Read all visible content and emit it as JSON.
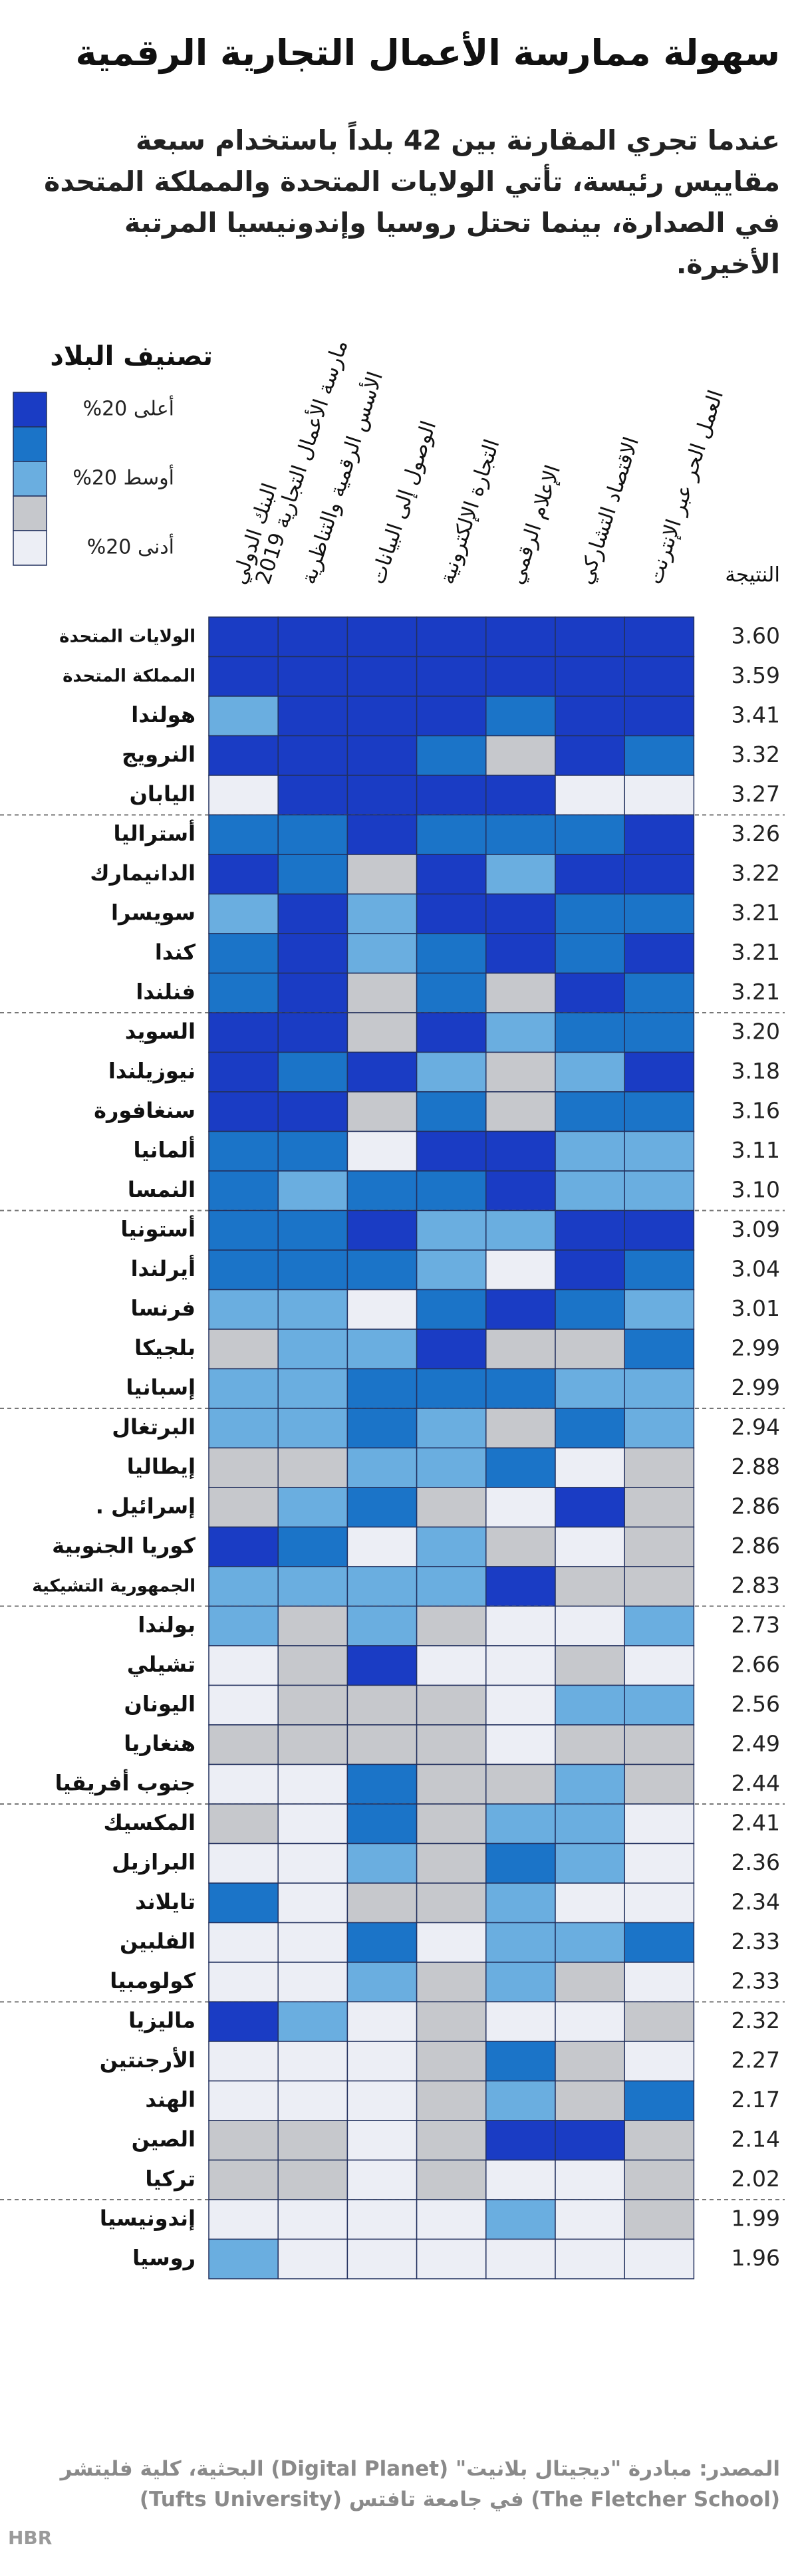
{
  "header": {
    "title": "سهولة ممارسة الأعمال التجارية الرقمية",
    "subtitle": "عندما تجري المقارنة بين 42 بلداً باستخدام سبعة مقاييس رئيسة، تأتي الولايات المتحدة والمملكة المتحدة في الصدارة، بينما تحتل روسيا وإندونيسيا المرتبة الأخيرة."
  },
  "legend": {
    "title": "تصنيف البلاد",
    "colors": [
      "#1a3cc4",
      "#1b74c8",
      "#6aaee0",
      "#c6c8cc",
      "#eceef5"
    ],
    "labels": [
      "أعلى 20%",
      "أوسط 20%",
      "أدنى 20%"
    ]
  },
  "table": {
    "columns": [
      [
        "البنك الدولي",
        "مارسة الأعمال التجارية 2019"
      ],
      [
        "الأسس الرقمية والتناظرية"
      ],
      [
        "الوصول إلى البيانات"
      ],
      [
        "التجارة الإلكترونية"
      ],
      [
        "الإعلام الرقمي"
      ],
      [
        "الاقتصاد التشاركي"
      ],
      [
        "العمل الحر عبر الإنترنت"
      ]
    ],
    "score_header": "النتيجة",
    "rows": [
      {
        "country": "الولايات المتحدة",
        "score": "3.60",
        "levels": [
          1,
          1,
          1,
          1,
          1,
          1,
          1
        ]
      },
      {
        "country": "المملكة المتحدة",
        "score": "3.59",
        "levels": [
          1,
          1,
          1,
          1,
          1,
          1,
          1
        ]
      },
      {
        "country": "هولندا",
        "score": "3.41",
        "levels": [
          3,
          1,
          1,
          1,
          2,
          1,
          1
        ]
      },
      {
        "country": "النرويج",
        "score": "3.32",
        "levels": [
          1,
          1,
          1,
          2,
          4,
          1,
          2
        ]
      },
      {
        "country": "اليابان",
        "score": "3.27",
        "levels": [
          5,
          1,
          1,
          1,
          1,
          5,
          5
        ]
      },
      {
        "country": "أستراليا",
        "score": "3.26",
        "levels": [
          2,
          2,
          1,
          2,
          2,
          2,
          1
        ]
      },
      {
        "country": "الدانيمارك",
        "score": "3.22",
        "levels": [
          1,
          2,
          4,
          1,
          3,
          1,
          1
        ]
      },
      {
        "country": "سويسرا",
        "score": "3.21",
        "levels": [
          3,
          1,
          3,
          1,
          1,
          2,
          2
        ]
      },
      {
        "country": "كندا",
        "score": "3.21",
        "levels": [
          2,
          1,
          3,
          2,
          1,
          2,
          1
        ]
      },
      {
        "country": "فنلندا",
        "score": "3.21",
        "levels": [
          2,
          1,
          4,
          2,
          4,
          1,
          2
        ]
      },
      {
        "country": "السويد",
        "score": "3.20",
        "levels": [
          1,
          1,
          4,
          1,
          3,
          2,
          2
        ]
      },
      {
        "country": "نيوزيلندا",
        "score": "3.18",
        "levels": [
          1,
          2,
          1,
          3,
          4,
          3,
          1
        ]
      },
      {
        "country": "سنغافورة",
        "score": "3.16",
        "levels": [
          1,
          1,
          4,
          2,
          4,
          2,
          2
        ]
      },
      {
        "country": "ألمانيا",
        "score": "3.11",
        "levels": [
          2,
          2,
          5,
          1,
          1,
          3,
          3
        ]
      },
      {
        "country": "النمسا",
        "score": "3.10",
        "levels": [
          2,
          3,
          2,
          2,
          1,
          3,
          3
        ]
      },
      {
        "country": "أستونيا",
        "score": "3.09",
        "levels": [
          2,
          2,
          1,
          3,
          3,
          1,
          1
        ]
      },
      {
        "country": "أيرلندا",
        "score": "3.04",
        "levels": [
          2,
          2,
          2,
          3,
          5,
          1,
          2
        ]
      },
      {
        "country": "فرنسا",
        "score": "3.01",
        "levels": [
          3,
          3,
          5,
          2,
          1,
          2,
          3
        ]
      },
      {
        "country": "بلجيكا",
        "score": "2.99",
        "levels": [
          4,
          3,
          3,
          1,
          4,
          4,
          2
        ]
      },
      {
        "country": "إسبانيا",
        "score": "2.99",
        "levels": [
          3,
          3,
          2,
          2,
          2,
          3,
          3
        ]
      },
      {
        "country": "البرتغال",
        "score": "2.94",
        "levels": [
          3,
          3,
          2,
          3,
          4,
          2,
          3
        ]
      },
      {
        "country": "إيطاليا",
        "score": "2.88",
        "levels": [
          4,
          4,
          3,
          3,
          2,
          5,
          4
        ]
      },
      {
        "country": "إسرائيل .",
        "score": "2.86",
        "levels": [
          4,
          3,
          2,
          4,
          5,
          1,
          4
        ]
      },
      {
        "country": "كوريا الجنوبية",
        "score": "2.86",
        "levels": [
          1,
          2,
          5,
          3,
          4,
          5,
          4
        ]
      },
      {
        "country": "الجمهورية التشيكية",
        "score": "2.83",
        "levels": [
          3,
          3,
          3,
          3,
          1,
          4,
          4
        ]
      },
      {
        "country": "بولندا",
        "score": "2.73",
        "levels": [
          3,
          4,
          3,
          4,
          5,
          5,
          3
        ]
      },
      {
        "country": "تشيلي",
        "score": "2.66",
        "levels": [
          5,
          4,
          1,
          5,
          5,
          4,
          5
        ]
      },
      {
        "country": "اليونان",
        "score": "2.56",
        "levels": [
          5,
          4,
          4,
          4,
          5,
          3,
          3
        ]
      },
      {
        "country": "هنغاريا",
        "score": "2.49",
        "levels": [
          4,
          4,
          4,
          4,
          5,
          4,
          4
        ]
      },
      {
        "country": "جنوب أفريقيا",
        "score": "2.44",
        "levels": [
          5,
          5,
          2,
          4,
          4,
          3,
          4
        ]
      },
      {
        "country": "المكسيك",
        "score": "2.41",
        "levels": [
          4,
          5,
          2,
          4,
          3,
          3,
          5
        ]
      },
      {
        "country": "البرازيل",
        "score": "2.36",
        "levels": [
          5,
          5,
          3,
          4,
          2,
          3,
          5
        ]
      },
      {
        "country": "تايلاند",
        "score": "2.34",
        "levels": [
          2,
          5,
          4,
          4,
          3,
          5,
          5
        ]
      },
      {
        "country": "الفلبين",
        "score": "2.33",
        "levels": [
          5,
          5,
          2,
          5,
          3,
          3,
          2
        ]
      },
      {
        "country": "كولومبيا",
        "score": "2.33",
        "levels": [
          5,
          5,
          3,
          4,
          3,
          4,
          5
        ]
      },
      {
        "country": "ماليزيا",
        "score": "2.32",
        "levels": [
          1,
          3,
          5,
          4,
          5,
          5,
          4
        ]
      },
      {
        "country": "الأرجنتين",
        "score": "2.27",
        "levels": [
          5,
          5,
          5,
          4,
          2,
          4,
          5
        ]
      },
      {
        "country": "الهند",
        "score": "2.17",
        "levels": [
          5,
          5,
          5,
          4,
          3,
          4,
          2
        ]
      },
      {
        "country": "الصين",
        "score": "2.14",
        "levels": [
          4,
          4,
          5,
          4,
          1,
          1,
          4
        ]
      },
      {
        "country": "تركيا",
        "score": "2.02",
        "levels": [
          4,
          4,
          5,
          4,
          5,
          5,
          4
        ]
      },
      {
        "country": "إندونيسيا",
        "score": "1.99",
        "levels": [
          5,
          5,
          5,
          5,
          3,
          5,
          4
        ]
      },
      {
        "country": "روسيا",
        "score": "1.96",
        "levels": [
          3,
          5,
          5,
          5,
          5,
          5,
          5
        ]
      }
    ]
  },
  "footer": {
    "source": "المصدر: مبادرة \"ديجيتال بلانيت\" (Digital Planet) البحثية، كلية فليتشر (The Fletcher School) في جامعة تافتس (Tufts University)",
    "logo": "HBR"
  }
}
